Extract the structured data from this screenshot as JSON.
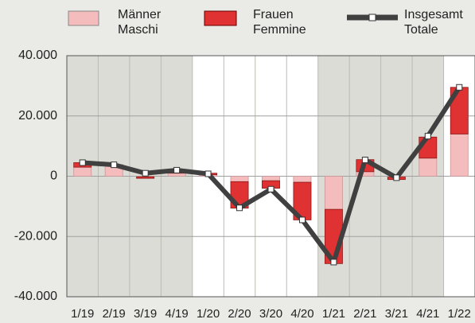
{
  "chart_data": {
    "type": "bar",
    "categories": [
      "1/19",
      "2/19",
      "3/19",
      "4/19",
      "1/20",
      "2/20",
      "3/20",
      "4/20",
      "1/21",
      "2/21",
      "3/21",
      "4/21",
      "1/22"
    ],
    "series": [
      {
        "name": "Männer\nMaschi",
        "type": "bar",
        "color": "#f4bcbc",
        "values": [
          3000,
          3500,
          -200,
          1000,
          500,
          -1800,
          -1500,
          -2000,
          -11000,
          1500,
          -300,
          6000,
          14000
        ]
      },
      {
        "name": "Frauen\nFemmine",
        "type": "bar",
        "color": "#e03232",
        "values": [
          1500,
          300,
          -500,
          500,
          500,
          -8800,
          -2500,
          -12500,
          -18000,
          4000,
          -800,
          7000,
          15500
        ]
      },
      {
        "name": "Insgesamt\nTotale",
        "type": "line",
        "color": "#404040",
        "values": [
          4500,
          3800,
          1000,
          2000,
          800,
          -10500,
          -4300,
          -14500,
          -28500,
          5400,
          -500,
          13300,
          29500
        ]
      }
    ],
    "ylim": [
      -40000,
      40000
    ],
    "yticks": [
      {
        "value": -40000,
        "label": "-40.000"
      },
      {
        "value": -20000,
        "label": "-20.000"
      },
      0,
      {
        "value": 20000,
        "label": "20.000"
      },
      {
        "value": 40000,
        "label": "40.000"
      }
    ],
    "grid": true
  }
}
